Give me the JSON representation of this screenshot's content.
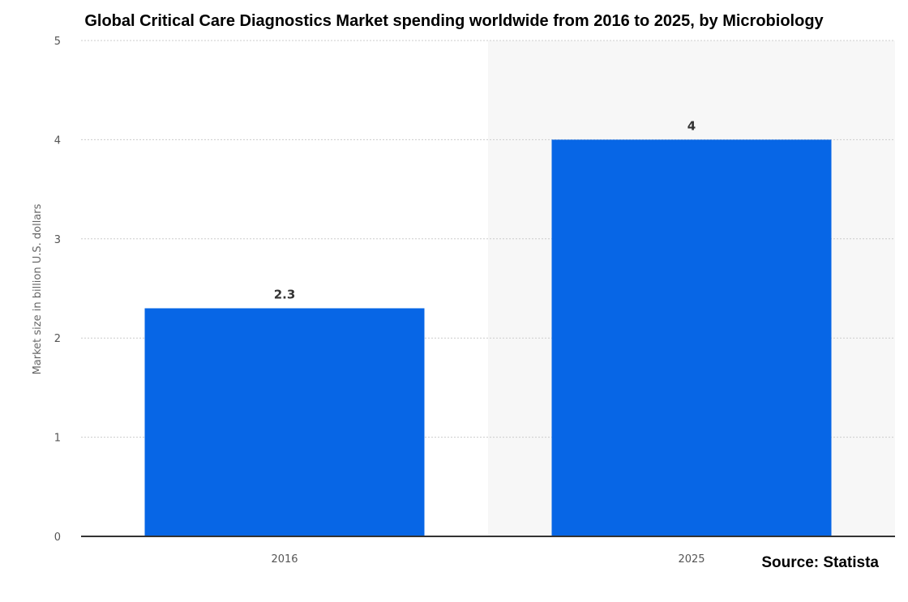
{
  "chart_data": {
    "type": "bar",
    "title": "Global Critical Care Diagnostics Market spending worldwide from 2016 to 2025, by Microbiology",
    "ylabel": "Market size in billion U.S. dollars",
    "xlabel": "",
    "categories": [
      "2016",
      "2025"
    ],
    "values": [
      2.3,
      4
    ],
    "value_labels": [
      "2.3",
      "4"
    ],
    "ylim": [
      0,
      5
    ],
    "yticks": [
      "0",
      "1",
      "2",
      "3",
      "4",
      "5"
    ],
    "grid": true,
    "highlight_forecast_category": "2025",
    "colors": {
      "bar": "#0766e6",
      "forecast_band": "#f7f7f7",
      "grid": "#cccccc",
      "axis": "#333333"
    }
  },
  "source": "Source: Statista"
}
